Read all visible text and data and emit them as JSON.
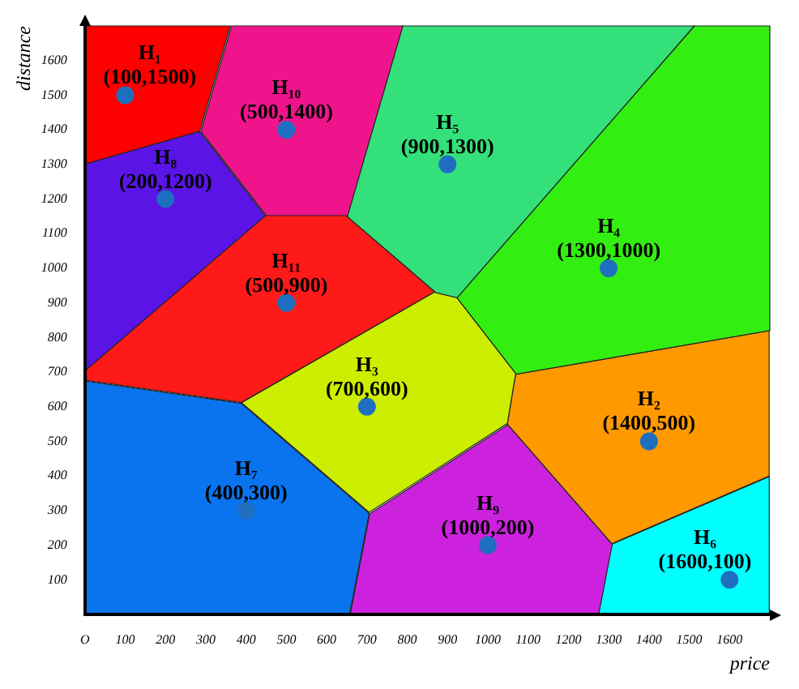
{
  "chart_data": {
    "type": "scatter",
    "xlabel": "price",
    "ylabel": "distance",
    "x": [
      100,
      1400,
      700,
      1300,
      900,
      1600,
      400,
      200,
      1000,
      500,
      500
    ],
    "values": [
      1500,
      500,
      600,
      1000,
      1300,
      100,
      300,
      1200,
      200,
      1400,
      900
    ],
    "color": "#1f6fc0",
    "xlim": [
      0,
      1700
    ],
    "ylim": [
      0,
      1700
    ],
    "xticks": [
      {
        "value": 0,
        "label": "O"
      },
      100,
      200,
      300,
      400,
      500,
      600,
      700,
      800,
      900,
      1000,
      1100,
      1200,
      1300,
      1400,
      1500,
      1600
    ],
    "yticks": [
      100,
      200,
      300,
      400,
      500,
      600,
      700,
      800,
      900,
      1000,
      1100,
      1200,
      1300,
      1400,
      1500,
      1600
    ],
    "grid": false,
    "legend": false,
    "marker": "circle",
    "annotations": [
      {
        "text": "H₁ (100,1500)",
        "x": 100,
        "y": 1500
      },
      {
        "text": "H₂ (1400,500)",
        "x": 1400,
        "y": 500
      },
      {
        "text": "H₃ (700,600)",
        "x": 700,
        "y": 600
      },
      {
        "text": "H₄ (1300,1000)",
        "x": 1300,
        "y": 1000
      },
      {
        "text": "H₅ (900,1300)",
        "x": 900,
        "y": 1300
      },
      {
        "text": "H₆ (1600,100)",
        "x": 1600,
        "y": 100
      },
      {
        "text": "H₇ (400,300)",
        "x": 400,
        "y": 300
      },
      {
        "text": "H₈ (200,1200)",
        "x": 200,
        "y": 1200
      },
      {
        "text": "H₉ (1000,200)",
        "x": 1000,
        "y": 200
      },
      {
        "text": "H₁₀ (500,1400)",
        "x": 500,
        "y": 1400
      },
      {
        "text": "H₁₁ (500,900)",
        "x": 500,
        "y": 900
      }
    ]
  }
}
